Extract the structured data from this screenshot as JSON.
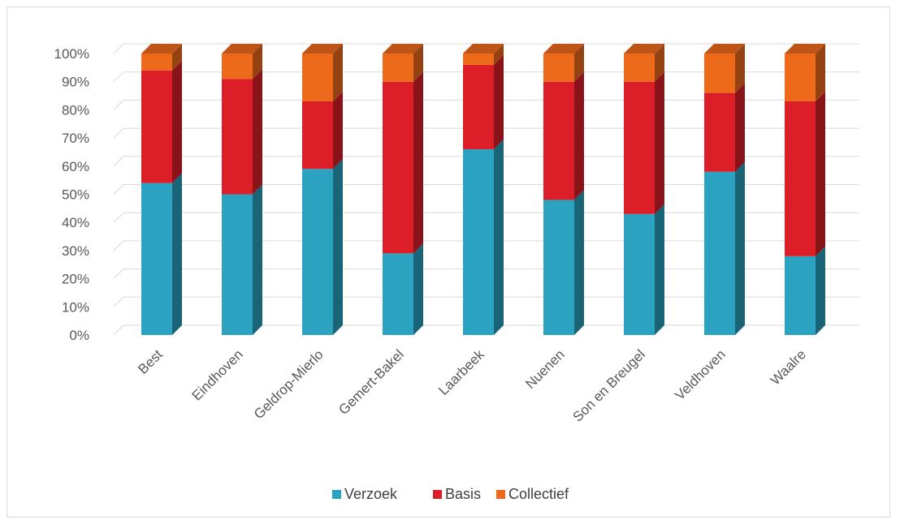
{
  "chart_data": {
    "type": "bar",
    "stacked": "percent",
    "three_d": true,
    "title": "",
    "xlabel": "",
    "ylabel": "",
    "ylim": [
      0,
      100
    ],
    "y_ticks": [
      "0%",
      "10%",
      "20%",
      "30%",
      "40%",
      "50%",
      "60%",
      "70%",
      "80%",
      "90%",
      "100%"
    ],
    "grid": true,
    "legend_position": "bottom",
    "categories": [
      "Best",
      "Eindhoven",
      "Geldrop-Mierlo",
      "Gemert-Bakel",
      "Laarbeek",
      "Nuenen",
      "Son en Breugel",
      "Veldhoven",
      "Waalre"
    ],
    "series": [
      {
        "name": "Verzoek",
        "color": "#2aa2c0",
        "values": [
          54,
          50,
          59,
          29,
          66,
          48,
          43,
          58,
          28
        ]
      },
      {
        "name": "Basis",
        "color": "#dc1e28",
        "values": [
          40,
          41,
          24,
          61,
          30,
          42,
          47,
          28,
          55
        ]
      },
      {
        "name": "Collectief",
        "color": "#ee6a1b",
        "values": [
          6,
          9,
          17,
          10,
          4,
          10,
          10,
          14,
          17
        ]
      }
    ]
  }
}
